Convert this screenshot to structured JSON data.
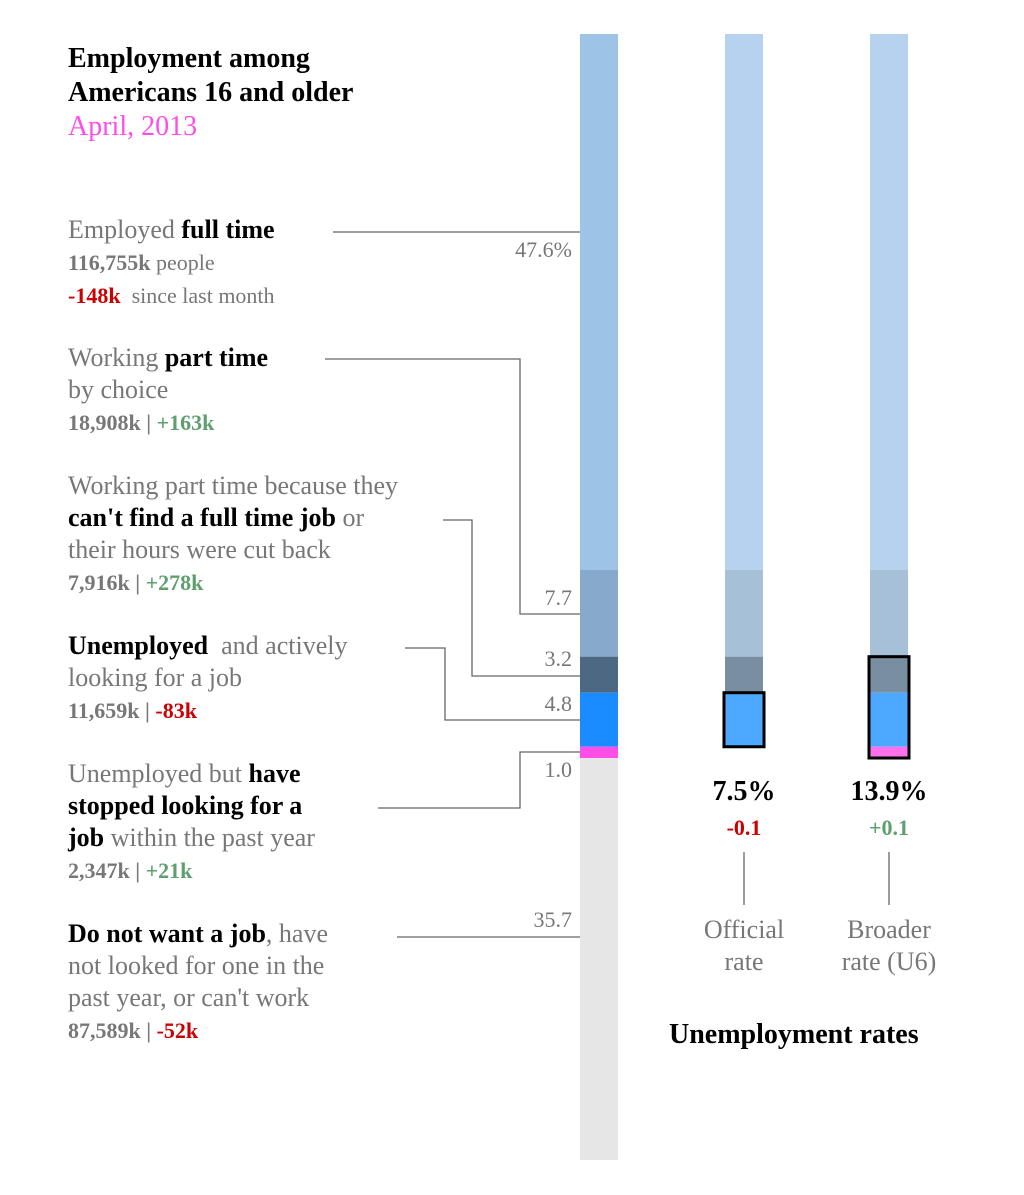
{
  "title": {
    "line1": "Employment among",
    "line2": "Americans 16 and older",
    "date": "April, 2013"
  },
  "labels": [
    {
      "pre": "Employed ",
      "bold": "full time",
      "count": "116,755k",
      "count_suffix": " people",
      "change": "-148k",
      "change_suffix": "  since last month"
    },
    {
      "pre": "Working ",
      "bold": "part time",
      "line2": "by choice",
      "count": "18,908k",
      "change": "+163k"
    },
    {
      "line1": "Working part time because they",
      "bold": "can't find a full time job",
      "post": " or",
      "line3": "their hours were cut back",
      "count": "7,916k",
      "change": "+278k"
    },
    {
      "bold": "Unemployed",
      "post": "  and actively",
      "line2": "looking for a job",
      "count": "11,659k",
      "change": "-83k"
    },
    {
      "pre": "Unemployed but ",
      "bold": "have",
      "bold2": "stopped looking for a",
      "bold3": "job",
      "post": " within the past year",
      "count": "2,347k",
      "change": "+21k"
    },
    {
      "bold": "Do not want a job",
      "post": ", have",
      "line2": "not looked for one in the",
      "line3": "past year, or can't work",
      "count": "87,589k",
      "change": "-52k"
    }
  ],
  "separator": " | ",
  "rates": {
    "official": {
      "value": "7.5%",
      "change": "-0.1",
      "label1": "Official",
      "label2": "rate"
    },
    "broader": {
      "value": "13.9%",
      "change": "+0.1",
      "label1": "Broader",
      "label2": "rate (U6)"
    },
    "title": "Unemployment rates"
  },
  "chart_data": {
    "type": "stacked-bar",
    "categories": [
      "Employed full time",
      "Working part time by choice",
      "Part time, can't find full time job",
      "Unemployed, actively looking",
      "Stopped looking within past year",
      "Do not want a job"
    ],
    "values": [
      47.6,
      7.7,
      3.2,
      4.8,
      1.0,
      35.7
    ],
    "value_labels": [
      "47.6%",
      "7.7",
      "3.2",
      "4.8",
      "1.0",
      "35.7"
    ],
    "colors": [
      "#9dc3e6",
      "#87a9cb",
      "#4d6882",
      "#1a8cff",
      "#ff4de8",
      "#e6e6e6"
    ],
    "light_colors": [
      "#b6d2ee",
      "#a6c0d8",
      "#7a8ea2",
      "#4da8ff",
      "#ff70ea"
    ],
    "official_rate_includes": [
      3
    ],
    "broader_rate_includes": [
      2,
      3,
      4
    ]
  }
}
